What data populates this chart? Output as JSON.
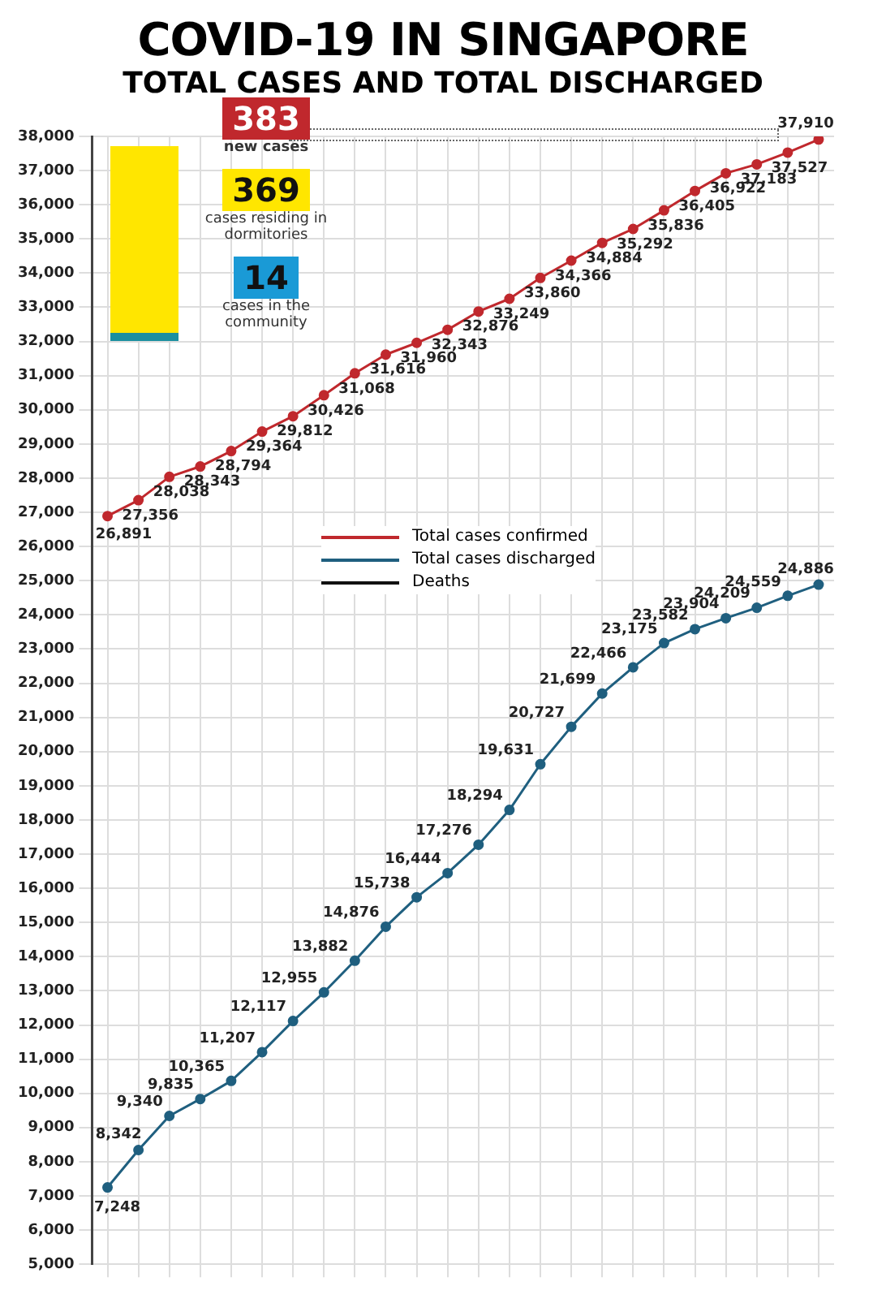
{
  "chart_data": {
    "type": "line",
    "title": "COVID-19 IN SINGAPORE",
    "subtitle": "TOTAL CASES AND TOTAL DISCHARGED",
    "categories": [
      null,
      null,
      null,
      null,
      null,
      null,
      null,
      null,
      null,
      null,
      null,
      null,
      null,
      null,
      null,
      null,
      null,
      null,
      null,
      null,
      null,
      null,
      null,
      null
    ],
    "series": [
      {
        "name": "Total cases confirmed",
        "color": "#c0282d",
        "values": [
          26891,
          27356,
          28038,
          28343,
          28794,
          29364,
          29812,
          30426,
          31068,
          31616,
          31960,
          32343,
          32876,
          33249,
          33860,
          34366,
          34884,
          35292,
          35836,
          36405,
          36922,
          37183,
          37527,
          37910
        ],
        "value_labels": [
          "26,891",
          "27,356",
          "28,038",
          "28,343",
          "28,794",
          "29,364",
          "29,812",
          "30,426",
          "31,068",
          "31,616",
          "31,960",
          "32,343",
          "32,876",
          "33,249",
          "33,860",
          "34,366",
          "34,884",
          "35,292",
          "35,836",
          "36,405",
          "36,922",
          "37,183",
          "37,527",
          "37,910"
        ]
      },
      {
        "name": "Total cases discharged",
        "color": "#1f5f7f",
        "values": [
          7248,
          8342,
          9340,
          9835,
          10365,
          11207,
          12117,
          12955,
          13882,
          14876,
          15738,
          16444,
          17276,
          18294,
          19631,
          20727,
          21699,
          22466,
          23175,
          23582,
          23904,
          24209,
          24559,
          24886
        ],
        "value_labels": [
          "7,248",
          "8,342",
          "9,340",
          "9,835",
          "10,365",
          "11,207",
          "12,117",
          "12,955",
          "13,882",
          "14,876",
          "15,738",
          "16,444",
          "17,276",
          "18,294",
          "19,631",
          "20,727",
          "21,699",
          "22,466",
          "23,175",
          "23,582",
          "23,904",
          "24,209",
          "24,559",
          "24,886"
        ]
      },
      {
        "name": "Deaths",
        "color": "#111111",
        "values": [
          null,
          null,
          null,
          null,
          null,
          null,
          null,
          null,
          null,
          null,
          null,
          null,
          null,
          null,
          null,
          null,
          null,
          null,
          null,
          null,
          null,
          null,
          null,
          null
        ]
      }
    ],
    "ylim": [
      5000,
      38000
    ],
    "yticks": [
      {
        "value": 5000,
        "label": "5,000"
      },
      {
        "value": 6000,
        "label": "6,000"
      },
      {
        "value": 7000,
        "label": "7,000"
      },
      {
        "value": 8000,
        "label": "8,000"
      },
      {
        "value": 9000,
        "label": "9,000"
      },
      {
        "value": 10000,
        "label": "10,000"
      },
      {
        "value": 11000,
        "label": "11,000"
      },
      {
        "value": 12000,
        "label": "12,000"
      },
      {
        "value": 13000,
        "label": "13,000"
      },
      {
        "value": 14000,
        "label": "14,000"
      },
      {
        "value": 15000,
        "label": "15,000"
      },
      {
        "value": 16000,
        "label": "16,000"
      },
      {
        "value": 17000,
        "label": "17,000"
      },
      {
        "value": 18000,
        "label": "18,000"
      },
      {
        "value": 19000,
        "label": "19,000"
      },
      {
        "value": 20000,
        "label": "20,000"
      },
      {
        "value": 21000,
        "label": "21,000"
      },
      {
        "value": 22000,
        "label": "22,000"
      },
      {
        "value": 23000,
        "label": "23,000"
      },
      {
        "value": 24000,
        "label": "24,000"
      },
      {
        "value": 25000,
        "label": "25,000"
      },
      {
        "value": 26000,
        "label": "26,000"
      },
      {
        "value": 27000,
        "label": "27,000"
      },
      {
        "value": 28000,
        "label": "28,000"
      },
      {
        "value": 29000,
        "label": "29,000"
      },
      {
        "value": 30000,
        "label": "30,000"
      },
      {
        "value": 31000,
        "label": "31,000"
      },
      {
        "value": 32000,
        "label": "32,000"
      },
      {
        "value": 33000,
        "label": "33,000"
      },
      {
        "value": 34000,
        "label": "34,000"
      },
      {
        "value": 35000,
        "label": "35,000"
      },
      {
        "value": 36000,
        "label": "36,000"
      },
      {
        "value": 37000,
        "label": "37,000"
      },
      {
        "value": 38000,
        "label": "38,000"
      }
    ],
    "grid": true,
    "legend": "center",
    "marker": "circle",
    "line_style": "solid",
    "annotations": [
      "383",
      "new cases",
      "369",
      "cases residing in dormitories",
      "14",
      "cases in the community"
    ]
  }
}
